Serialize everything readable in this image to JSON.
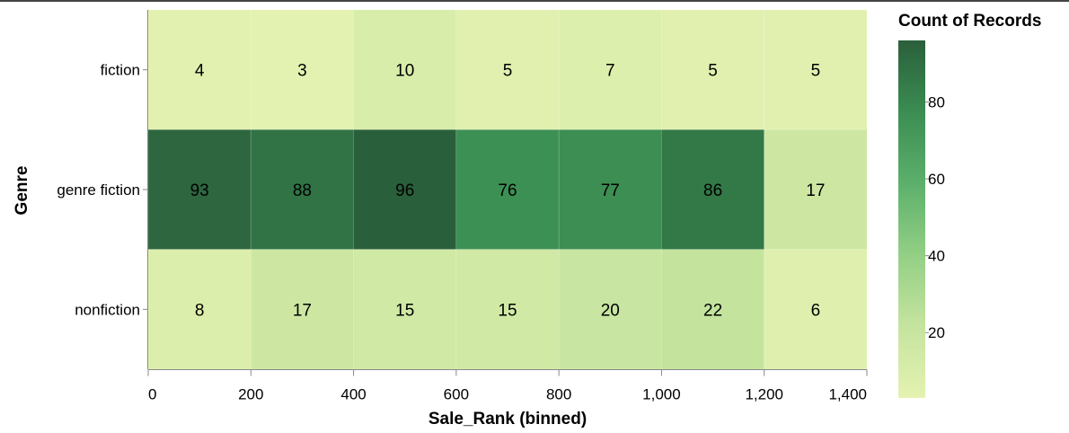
{
  "chart_data": {
    "type": "heatmap",
    "title": "",
    "xlabel": "Sale_Rank (binned)",
    "ylabel": "Genre",
    "x_bins": [
      [
        0,
        200
      ],
      [
        200,
        400
      ],
      [
        400,
        600
      ],
      [
        600,
        800
      ],
      [
        800,
        1000
      ],
      [
        1000,
        1200
      ],
      [
        1200,
        1400
      ]
    ],
    "x_ticks": [
      0,
      200,
      400,
      600,
      800,
      1000,
      1200,
      1400
    ],
    "x_tick_labels": [
      "0",
      "200",
      "400",
      "600",
      "800",
      "1,000",
      "1,200",
      "1,400"
    ],
    "xlim": [
      0,
      1400
    ],
    "categories": [
      "fiction",
      "genre fiction",
      "nonfiction"
    ],
    "values": [
      [
        4,
        3,
        10,
        5,
        7,
        5,
        5
      ],
      [
        93,
        88,
        96,
        76,
        77,
        86,
        17
      ],
      [
        8,
        17,
        15,
        15,
        20,
        22,
        6
      ]
    ],
    "legend": {
      "title": "Count of Records",
      "ticks": [
        20,
        40,
        60,
        80
      ],
      "range": [
        3,
        96
      ],
      "placement": "right",
      "colors": [
        "#e4f2b1",
        "#c5e49f",
        "#93cf85",
        "#5cb06b",
        "#3b8d52",
        "#2a5f3b"
      ]
    },
    "grid": false
  }
}
